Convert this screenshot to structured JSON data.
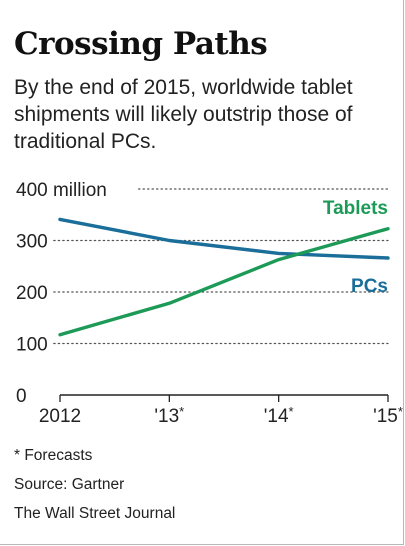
{
  "header": {
    "title": "Crossing Paths",
    "subtitle": "By the end of 2015, worldwide tablet shipments will likely outstrip those of traditional PCs."
  },
  "footer": {
    "note": "* Forecasts",
    "source": "Source: Gartner",
    "publisher": "The Wall Street Journal"
  },
  "chart_data": {
    "type": "line",
    "title": "Crossing Paths",
    "subtitle": "By the end of 2015, worldwide tablet shipments will likely outstrip those of traditional PCs.",
    "x": [
      2012,
      2013,
      2014,
      2015
    ],
    "x_tick_labels": [
      "2012",
      "'13*",
      "'14*",
      "'15*"
    ],
    "y_tick_labels": [
      "0",
      "100",
      "200",
      "300",
      "400 million"
    ],
    "y_ticks": [
      0,
      100,
      200,
      300,
      400
    ],
    "ylim": [
      0,
      400
    ],
    "y_unit": "million",
    "grid": "dotted horizontal",
    "legend": "direct labels on lines",
    "series": [
      {
        "name": "PCs",
        "values": [
          341,
          300,
          275,
          266
        ],
        "color": "#1a6e99"
      },
      {
        "name": "Tablets",
        "values": [
          117,
          178,
          263,
          323
        ],
        "color": "#1d9a57"
      }
    ]
  }
}
